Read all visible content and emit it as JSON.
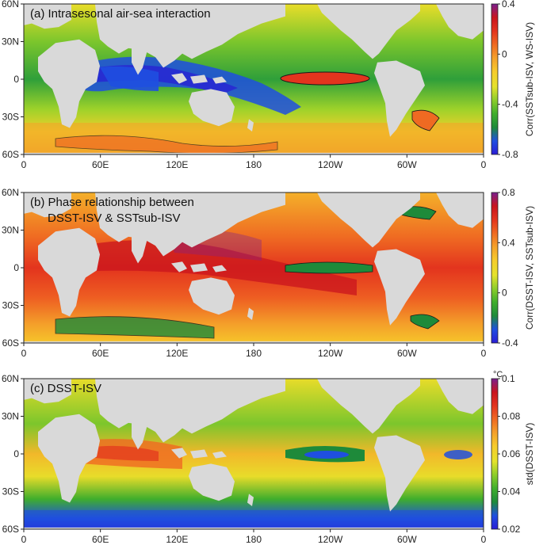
{
  "panels": [
    {
      "id": "a",
      "title": "(a) Intrasesonal air-sea interaction",
      "title2": "",
      "colorbar_label": "Corr(SSTsub-ISV, WS-ISV)",
      "colorbar_ticks": [
        "0.4",
        "0",
        "-0.4",
        "-0.8"
      ],
      "colorbar_range": [
        -0.8,
        0.4
      ],
      "unit": "",
      "lat_labels": [
        "60N",
        "30N",
        "0",
        "30S",
        "60S"
      ],
      "lon_labels": [
        "0",
        "60E",
        "120E",
        "180",
        "120W",
        "60W",
        "0"
      ]
    },
    {
      "id": "b",
      "title": "(b) Phase relationship between",
      "title2": "DSST-ISV & SSTsub-ISV",
      "colorbar_label": "Corr(DSST-ISV, SSTsub-ISV)",
      "colorbar_ticks": [
        "0.8",
        "0.4",
        "0",
        "-0.4"
      ],
      "colorbar_range": [
        -0.4,
        0.8
      ],
      "unit": "",
      "lat_labels": [
        "60N",
        "30N",
        "0",
        "30S",
        "60S"
      ],
      "lon_labels": [
        "0",
        "60E",
        "120E",
        "180",
        "120W",
        "60W",
        "0"
      ]
    },
    {
      "id": "c",
      "title": "(c) DSST-ISV",
      "title2": "",
      "colorbar_label": "std(DSST-ISV)",
      "colorbar_ticks": [
        "0.1",
        "0.08",
        "0.06",
        "0.04",
        "0.02"
      ],
      "colorbar_range": [
        0.01,
        0.11
      ],
      "unit": "°C",
      "lat_labels": [
        "60N",
        "30N",
        "0",
        "30S",
        "60S"
      ],
      "lon_labels": [
        "0",
        "60E",
        "120E",
        "180",
        "120W",
        "60W",
        "0"
      ]
    }
  ],
  "colors": {
    "land": "#d9d9d9",
    "contour": "#1a1a1a",
    "colormap": [
      "#2a1bd6",
      "#1f4fe0",
      "#1e8a3a",
      "#3fae2c",
      "#8ccd2a",
      "#e4e22a",
      "#f6cc2a",
      "#f4a12a",
      "#ef6a22",
      "#e3341e",
      "#c9141e",
      "#7a1f8e"
    ]
  }
}
